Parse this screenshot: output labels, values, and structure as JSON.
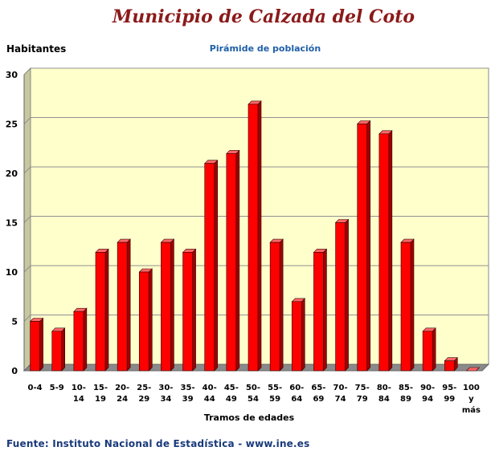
{
  "header": {
    "title": "Municipio de Calzada del Coto",
    "subtitle": "Pirámide de población"
  },
  "footer": {
    "source": "Fuente: Instituto Nacional de Estadística - www.ine.es"
  },
  "colors": {
    "plot_background": "#ffffcc",
    "bar_front": "#ff0000",
    "bar_side": "#9e0000",
    "bar_top": "#ff6666",
    "title": "#8b1a1a",
    "subtitle": "#1f5fa8"
  },
  "chart_data": {
    "type": "bar",
    "ylabel": "Habitantes",
    "xlabel": "Tramos de edades",
    "ylim": [
      0,
      30
    ],
    "y_ticks": [
      0,
      5,
      10,
      15,
      20,
      25,
      30
    ],
    "grid": true,
    "legend": "none",
    "categories": [
      "0-4",
      "5-9",
      "10-14",
      "15-19",
      "20-24",
      "25-29",
      "30-34",
      "35-39",
      "40-44",
      "45-49",
      "50-54",
      "55-59",
      "60-64",
      "65-69",
      "70-74",
      "75-79",
      "80-84",
      "85-89",
      "90-94",
      "95-99",
      "100 y más"
    ],
    "values": [
      5,
      4,
      6,
      12,
      13,
      10,
      13,
      12,
      21,
      22,
      27,
      13,
      7,
      12,
      15,
      25,
      24,
      13,
      4,
      1,
      0
    ]
  }
}
